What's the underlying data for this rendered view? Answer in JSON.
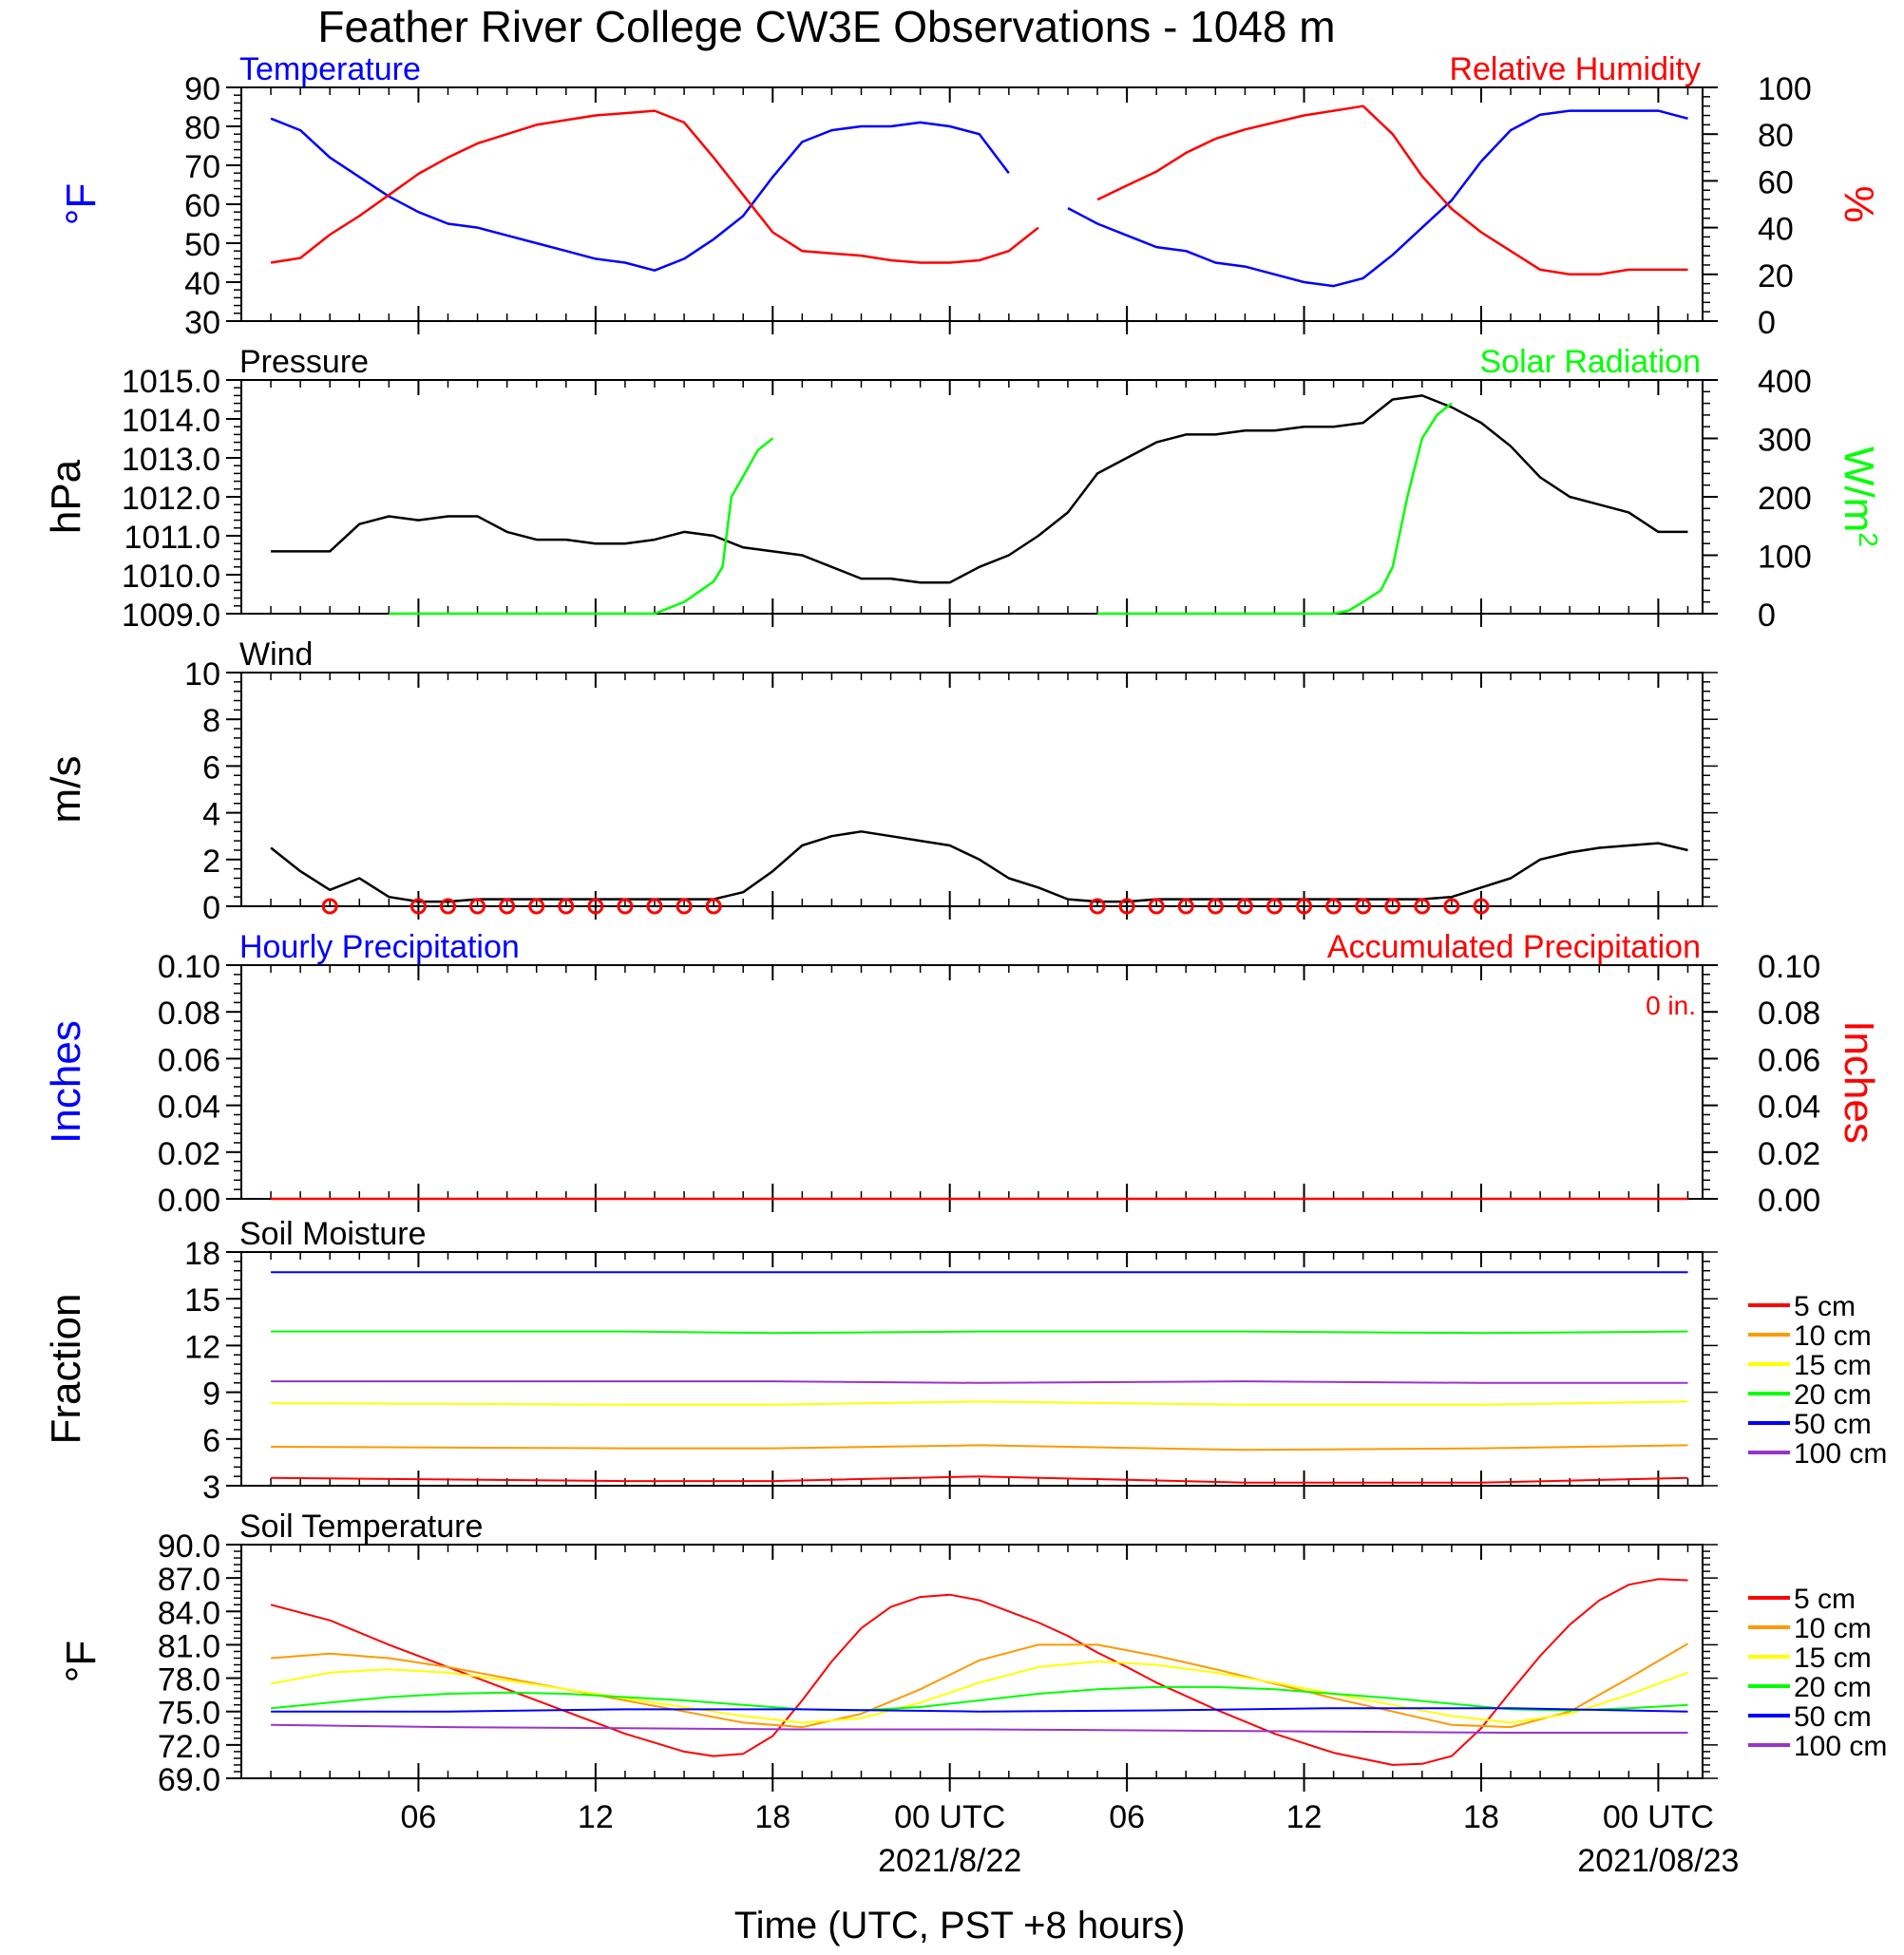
{
  "title": "Feather River College CW3E Observations - 1048 m",
  "xlabel": "Time (UTC, PST +8 hours)",
  "time_ticks": [
    {
      "t": 6,
      "label": "06"
    },
    {
      "t": 12,
      "label": "12"
    },
    {
      "t": 18,
      "label": "18"
    },
    {
      "t": 24,
      "label": "00 UTC",
      "date": "2021/8/22"
    },
    {
      "t": 30,
      "label": "06"
    },
    {
      "t": 36,
      "label": "12"
    },
    {
      "t": 42,
      "label": "18"
    },
    {
      "t": 48,
      "label": "00 UTC",
      "date": "2021/08/23"
    }
  ],
  "chart_data": [
    {
      "type": "line",
      "left_title": "Temperature",
      "right_title": "Relative Humidity",
      "ylabel": "°F",
      "ylabel_right": "%",
      "ylim": [
        30,
        90
      ],
      "yticks": [
        "30",
        "40",
        "50",
        "60",
        "70",
        "80",
        "90"
      ],
      "ylim_right": [
        0,
        100
      ],
      "yticks_right": [
        "0",
        "20",
        "40",
        "60",
        "80",
        "100"
      ],
      "series": [
        {
          "color": "#0000ff",
          "axis": "left",
          "x": [
            1,
            2,
            3,
            4,
            5,
            6,
            7,
            8,
            9,
            10,
            11,
            12,
            13,
            14,
            15,
            16,
            17,
            18,
            19,
            20,
            21,
            22,
            23,
            24,
            25,
            26,
            27,
            28,
            29,
            30,
            31,
            32,
            33,
            34,
            35,
            36,
            37,
            38,
            39,
            40,
            41,
            42,
            43,
            44,
            45,
            46,
            47,
            48,
            49
          ],
          "y": [
            82,
            79,
            72,
            67,
            62,
            58,
            55,
            54,
            52,
            50,
            48,
            46,
            45,
            43,
            46,
            51,
            57,
            67,
            76,
            79,
            80,
            80,
            81,
            80,
            78,
            68,
            null,
            59,
            55,
            52,
            49,
            48,
            45,
            44,
            42,
            40,
            39,
            41,
            47,
            54,
            61,
            71,
            79,
            83,
            84,
            84,
            84,
            84,
            82
          ]
        },
        {
          "color": "#ff0000",
          "axis": "right",
          "x": [
            1,
            2,
            3,
            4,
            5,
            6,
            7,
            8,
            9,
            10,
            11,
            12,
            13,
            14,
            15,
            16,
            17,
            18,
            19,
            20,
            21,
            22,
            23,
            24,
            25,
            26,
            27,
            28,
            29,
            30,
            31,
            32,
            33,
            34,
            35,
            36,
            37,
            38,
            39,
            40,
            41,
            42,
            43,
            44,
            45,
            46,
            47,
            48,
            49
          ],
          "y": [
            25,
            27,
            37,
            45,
            54,
            63,
            70,
            76,
            80,
            84,
            86,
            88,
            89,
            90,
            85,
            70,
            54,
            38,
            30,
            29,
            28,
            26,
            25,
            25,
            26,
            30,
            40,
            null,
            52,
            58,
            64,
            72,
            78,
            82,
            85,
            88,
            90,
            92,
            80,
            62,
            48,
            38,
            30,
            22,
            20,
            20,
            22,
            22,
            22
          ]
        }
      ]
    },
    {
      "type": "line",
      "left_title": "Pressure",
      "right_title": "Solar Radiation",
      "ylabel": "hPa",
      "ylabel_right": "W/m",
      "ylabel_right_sup": "2",
      "ylim": [
        1009,
        1015
      ],
      "yticks": [
        "1009.0",
        "1010.0",
        "1011.0",
        "1012.0",
        "1013.0",
        "1014.0",
        "1015.0"
      ],
      "ylim_right": [
        0,
        400
      ],
      "yticks_right": [
        "0",
        "100",
        "200",
        "300",
        "400"
      ],
      "series": [
        {
          "color": "#000000",
          "axis": "left",
          "x": [
            1,
            2,
            3,
            4,
            5,
            6,
            7,
            8,
            9,
            10,
            11,
            12,
            13,
            14,
            15,
            16,
            17,
            18,
            19,
            20,
            21,
            22,
            23,
            24,
            25,
            26,
            27,
            28,
            29,
            30,
            31,
            32,
            33,
            34,
            35,
            36,
            37,
            38,
            39,
            40,
            41,
            42,
            43,
            44,
            45,
            46,
            47,
            48,
            49
          ],
          "y": [
            1010.6,
            1010.6,
            1010.6,
            1011.3,
            1011.5,
            1011.4,
            1011.5,
            1011.5,
            1011.1,
            1010.9,
            1010.9,
            1010.8,
            1010.8,
            1010.9,
            1011.1,
            1011.0,
            1010.7,
            1010.6,
            1010.5,
            1010.2,
            1009.9,
            1009.9,
            1009.8,
            1009.8,
            1010.2,
            1010.5,
            1011.0,
            1011.6,
            1012.6,
            1013.0,
            1013.4,
            1013.6,
            1013.6,
            1013.7,
            1013.7,
            1013.8,
            1013.8,
            1013.9,
            1014.5,
            1014.6,
            1014.3,
            1013.9,
            1013.3,
            1012.5,
            1012.0,
            1011.8,
            1011.6,
            1011.1,
            1011.1
          ]
        },
        {
          "color": "#00ff00",
          "axis": "right",
          "x": [
            5,
            6,
            7,
            8,
            9,
            10,
            11,
            12,
            13,
            14,
            15,
            16,
            16.3,
            16.6,
            17,
            17.5,
            18,
            19,
            20,
            21,
            22,
            23,
            24,
            25,
            26,
            27,
            28,
            29,
            30,
            31,
            32,
            33,
            34,
            35,
            36,
            37,
            37.5,
            38,
            38.6,
            39,
            39.5,
            40,
            40.5,
            41
          ],
          "y": [
            0,
            0,
            0,
            0,
            0,
            0,
            0,
            0,
            0,
            0,
            20,
            55,
            80,
            200,
            235,
            280,
            300,
            null,
            null,
            null,
            null,
            null,
            null,
            null,
            null,
            null,
            null,
            0,
            0,
            0,
            0,
            0,
            0,
            0,
            0,
            0,
            5,
            20,
            40,
            80,
            200,
            300,
            340,
            360
          ]
        }
      ]
    },
    {
      "type": "line",
      "left_title": "Wind",
      "ylabel": "m/s",
      "ylim": [
        0,
        10
      ],
      "yticks": [
        "0",
        "2",
        "4",
        "6",
        "8",
        "10"
      ],
      "series": [
        {
          "color": "#000000",
          "x": [
            1,
            2,
            3,
            4,
            5,
            6,
            7,
            8,
            9,
            10,
            11,
            12,
            13,
            14,
            15,
            16,
            17,
            18,
            19,
            20,
            21,
            22,
            23,
            24,
            25,
            26,
            27,
            28,
            29,
            30,
            31,
            32,
            33,
            34,
            35,
            36,
            37,
            38,
            39,
            40,
            41,
            42,
            43,
            44,
            45,
            46,
            47,
            48,
            49
          ],
          "y": [
            2.5,
            1.5,
            0.7,
            1.2,
            0.4,
            0.2,
            0.2,
            0.3,
            0.3,
            0.3,
            0.3,
            0.3,
            0.3,
            0.3,
            0.3,
            0.3,
            0.6,
            1.5,
            2.6,
            3.0,
            3.2,
            3.0,
            2.8,
            2.6,
            2.0,
            1.2,
            0.8,
            0.3,
            0.2,
            0.2,
            0.3,
            0.3,
            0.3,
            0.3,
            0.3,
            0.3,
            0.3,
            0.3,
            0.3,
            0.3,
            0.4,
            0.8,
            1.2,
            2.0,
            2.3,
            2.5,
            2.6,
            2.7,
            2.4
          ]
        }
      ],
      "calm_markers_x": [
        3,
        6,
        7,
        8,
        9,
        10,
        11,
        12,
        13,
        14,
        15,
        16,
        29,
        30,
        31,
        32,
        33,
        34,
        35,
        36,
        37,
        38,
        39,
        40,
        41,
        42
      ]
    },
    {
      "type": "line",
      "left_title": "Hourly Precipitation",
      "right_title": "Accumulated Precipitation",
      "total_label": "0 in.",
      "ylabel": "Inches",
      "ylabel_right": "Inches",
      "ylim": [
        0,
        0.1
      ],
      "yticks": [
        "0.00",
        "0.02",
        "0.04",
        "0.06",
        "0.08",
        "0.10"
      ],
      "yticks_right": [
        "0.00",
        "0.02",
        "0.04",
        "0.06",
        "0.08",
        "0.10"
      ],
      "series": [
        {
          "color": "#ff0000",
          "x": [
            1,
            49
          ],
          "y": [
            0,
            0
          ]
        }
      ]
    },
    {
      "type": "line",
      "left_title": "Soil Moisture",
      "ylabel": "Fraction",
      "ylim": [
        3,
        18
      ],
      "yticks": [
        "3",
        "6",
        "9",
        "12",
        "15",
        "18"
      ],
      "legend": [
        "5 cm",
        "10 cm",
        "15 cm",
        "20 cm",
        "50 cm",
        "100 cm"
      ],
      "series": [
        {
          "name": "5 cm",
          "color": "#ff0000",
          "x": [
            1,
            13,
            18,
            25,
            34,
            42,
            49
          ],
          "y": [
            3.5,
            3.3,
            3.3,
            3.6,
            3.2,
            3.2,
            3.5
          ]
        },
        {
          "name": "10 cm",
          "color": "#ff9900",
          "x": [
            1,
            13,
            18,
            25,
            34,
            42,
            49
          ],
          "y": [
            5.5,
            5.4,
            5.4,
            5.6,
            5.3,
            5.4,
            5.6
          ]
        },
        {
          "name": "15 cm",
          "color": "#ffff00",
          "x": [
            1,
            13,
            18,
            25,
            34,
            42,
            49
          ],
          "y": [
            8.3,
            8.2,
            8.2,
            8.4,
            8.2,
            8.2,
            8.4
          ]
        },
        {
          "name": "20 cm",
          "color": "#00ff00",
          "x": [
            1,
            13,
            18,
            25,
            34,
            42,
            49
          ],
          "y": [
            12.9,
            12.9,
            12.8,
            12.9,
            12.9,
            12.8,
            12.9
          ]
        },
        {
          "name": "50 cm",
          "color": "#0000ff",
          "x": [
            1,
            13,
            18,
            25,
            34,
            42,
            49
          ],
          "y": [
            16.7,
            16.7,
            16.7,
            16.7,
            16.7,
            16.7,
            16.7
          ]
        },
        {
          "name": "100 cm",
          "color": "#9933cc",
          "x": [
            1,
            13,
            18,
            25,
            34,
            42,
            49
          ],
          "y": [
            9.7,
            9.7,
            9.7,
            9.6,
            9.7,
            9.6,
            9.6
          ]
        }
      ]
    },
    {
      "type": "line",
      "left_title": "Soil Temperature",
      "ylabel": "°F",
      "ylim": [
        69,
        90
      ],
      "yticks": [
        "69.0",
        "72.0",
        "75.0",
        "78.0",
        "81.0",
        "84.0",
        "87.0",
        "90.0"
      ],
      "legend": [
        "5 cm",
        "10 cm",
        "15 cm",
        "20 cm",
        "50 cm",
        "100 cm"
      ],
      "series": [
        {
          "name": "5 cm",
          "color": "#ff0000",
          "x": [
            1,
            3,
            5,
            7,
            9,
            11,
            13,
            15,
            16,
            17,
            18,
            19,
            20,
            21,
            22,
            23,
            24,
            25,
            26,
            27,
            28,
            29,
            30,
            31,
            33,
            35,
            37,
            39,
            40,
            41,
            42,
            43,
            44,
            45,
            46,
            47,
            48,
            49
          ],
          "y": [
            84.6,
            83.2,
            81.0,
            79.0,
            77.0,
            75.0,
            73.0,
            71.4,
            71.0,
            71.2,
            72.8,
            76.0,
            79.5,
            82.5,
            84.4,
            85.3,
            85.5,
            85.0,
            84.0,
            83.0,
            81.8,
            80.3,
            79.0,
            77.6,
            75.2,
            73.0,
            71.3,
            70.2,
            70.3,
            71.0,
            73.5,
            76.8,
            80.0,
            82.8,
            85.0,
            86.4,
            86.9,
            86.8
          ]
        },
        {
          "name": "10 cm",
          "color": "#ff9900",
          "x": [
            1,
            3,
            5,
            7,
            9,
            11,
            13,
            15,
            17,
            19,
            21,
            23,
            25,
            27,
            29,
            31,
            33,
            35,
            37,
            39,
            41,
            43,
            45,
            47,
            49
          ],
          "y": [
            79.8,
            80.2,
            79.8,
            79.0,
            78.0,
            77.0,
            76.0,
            75.0,
            74.0,
            73.6,
            74.8,
            77.0,
            79.6,
            81.0,
            81.0,
            80.0,
            78.8,
            77.5,
            76.2,
            75.0,
            73.8,
            73.6,
            75.0,
            78.0,
            81.1
          ]
        },
        {
          "name": "15 cm",
          "color": "#ffff00",
          "x": [
            1,
            3,
            5,
            7,
            9,
            11,
            13,
            15,
            17,
            19,
            21,
            23,
            25,
            27,
            29,
            31,
            33,
            35,
            37,
            39,
            41,
            43,
            45,
            47,
            49
          ],
          "y": [
            77.5,
            78.5,
            78.8,
            78.5,
            77.8,
            77.0,
            76.2,
            75.4,
            74.6,
            74.0,
            74.4,
            75.8,
            77.6,
            79.0,
            79.5,
            79.2,
            78.5,
            77.6,
            76.6,
            75.6,
            74.6,
            74.0,
            74.8,
            76.5,
            78.5
          ]
        },
        {
          "name": "20 cm",
          "color": "#00ff00",
          "x": [
            1,
            3,
            5,
            7,
            9,
            11,
            13,
            15,
            17,
            19,
            21,
            23,
            25,
            27,
            29,
            31,
            33,
            35,
            37,
            39,
            41,
            43,
            45,
            47,
            49
          ],
          "y": [
            75.3,
            75.8,
            76.3,
            76.6,
            76.7,
            76.6,
            76.3,
            76.0,
            75.6,
            75.2,
            75.1,
            75.4,
            76.0,
            76.6,
            77.0,
            77.2,
            77.2,
            77.0,
            76.6,
            76.2,
            75.7,
            75.2,
            75.1,
            75.3,
            75.6
          ]
        },
        {
          "name": "50 cm",
          "color": "#0000ff",
          "x": [
            1,
            7,
            13,
            19,
            25,
            31,
            37,
            43,
            49
          ],
          "y": [
            75.0,
            75.0,
            75.2,
            75.2,
            75.0,
            75.1,
            75.3,
            75.3,
            75.0
          ]
        },
        {
          "name": "100 cm",
          "color": "#9933cc",
          "x": [
            1,
            7,
            13,
            19,
            25,
            31,
            37,
            43,
            49
          ],
          "y": [
            73.8,
            73.6,
            73.5,
            73.4,
            73.4,
            73.3,
            73.2,
            73.1,
            73.1
          ]
        }
      ]
    }
  ]
}
